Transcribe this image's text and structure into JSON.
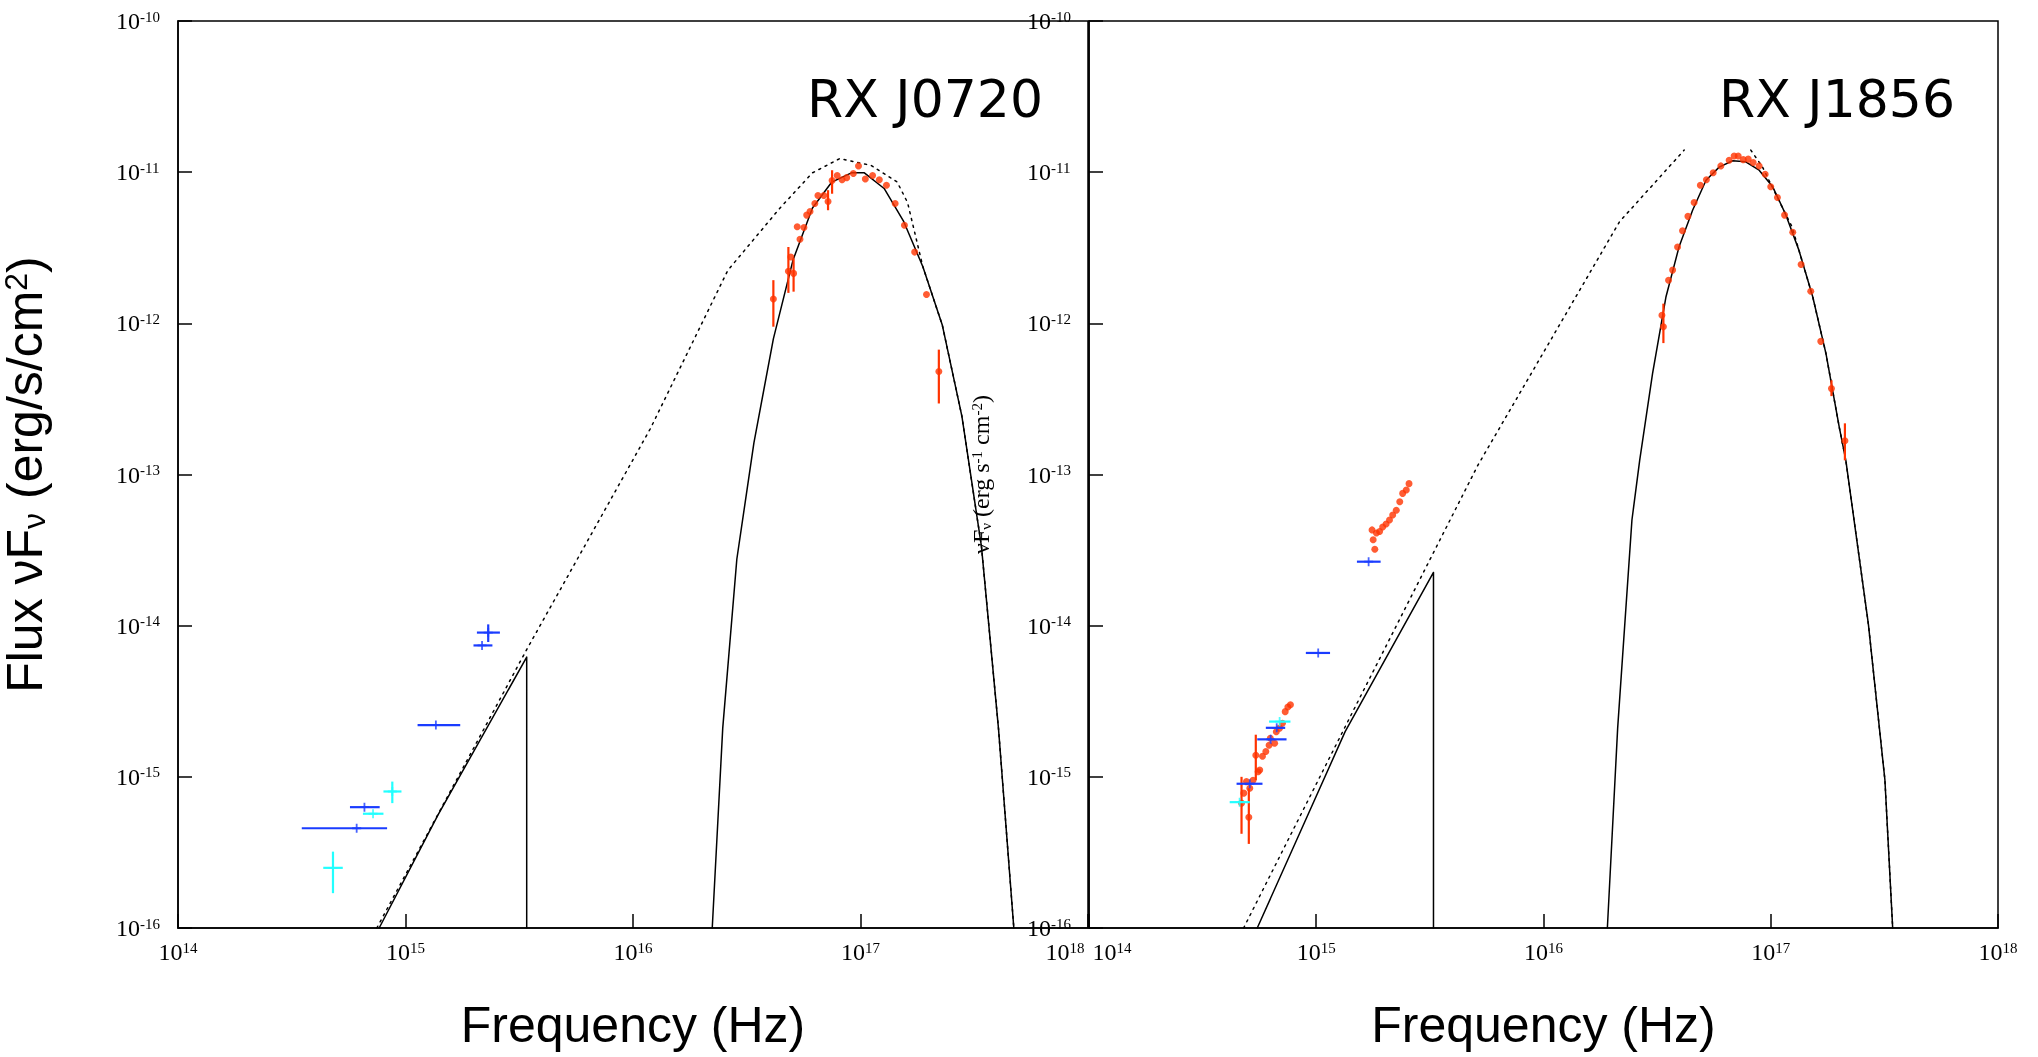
{
  "chart_data": [
    {
      "type": "scatter",
      "title": "RX J0720",
      "xlabel": "Frequency (Hz)",
      "ylabel": "Flux νF$_{ν}$ (erg/s/cm$^{2}$)",
      "log": "xy",
      "xlim": [
        100000000000000.0,
        1e+18
      ],
      "ylim": [
        1e-16,
        1e-10
      ],
      "xticks": [
        {
          "value": 100000000000000.0,
          "label": "10$^{14}$"
        },
        {
          "value": 1000000000000000.0,
          "label": "10$^{15}$"
        },
        {
          "value": 1e+16,
          "label": "10$^{16}$"
        },
        {
          "value": 1e+17,
          "label": "10$^{17}$"
        },
        {
          "value": 1e+18,
          "label": "10$^{18}$"
        }
      ],
      "yticks": [
        {
          "value": 1e-16,
          "label": "10$^{-16}$"
        },
        {
          "value": 1e-15,
          "label": "10$^{-15}$"
        },
        {
          "value": 1e-14,
          "label": "10$^{-14}$"
        },
        {
          "value": 1e-13,
          "label": "10$^{-13}$"
        },
        {
          "value": 1e-12,
          "label": "10$^{-12}$"
        },
        {
          "value": 1e-11,
          "label": "10$^{-11}$"
        },
        {
          "value": 1e-10,
          "label": "10$^{-10}$"
        }
      ],
      "series": [
        {
          "type": "line",
          "color": "#000000",
          "line_style": "dotted",
          "x": [
            748000000000000.0,
            3400000000000000.0,
            1.19e+16,
            2.61e+16,
            4.43e+16,
            6.15e+16,
            8.11e+16,
            1.11e+17,
            1.45e+17,
            1.61e+17,
            1.88e+17,
            2.29e+17,
            2.79e+17,
            3.4e+17,
            4.04e+17,
            4.72e+17
          ],
          "values": [
            1e-16,
            6.9e-15,
            2e-13,
            2.24e-12,
            5.8e-12,
            9.9e-12,
            1.23e-11,
            1.11e-11,
            8.6e-12,
            6.3e-12,
            2.37e-12,
            9.7e-13,
            2.43e-13,
            3.36e-14,
            2.1e-15,
            1e-16
          ]
        },
        {
          "type": "line",
          "color": "#000000",
          "line_style": "solid",
          "x": [
            766000000000000.0,
            1390000000000000.0,
            3410000000000000.0,
            3410000000000000.0,
            1e+16,
            2.23e+16,
            2.48e+16,
            2.86e+16,
            3.4e+16,
            4.14e+16,
            5.05e+16,
            6.15e+16,
            7.48e+16,
            9.12e+16,
            1.04e+17,
            1.27e+17,
            1.55e+17,
            1.88e+17,
            2.29e+17,
            2.79e+17,
            3.4e+17,
            4.04e+17,
            4.72e+17
          ],
          "values": [
            1e-16,
            5.6e-16,
            6.2e-15,
            1e-16,
            null,
            1e-16,
            2.1e-15,
            2.75e-14,
            1.62e-13,
            7.9e-13,
            2.62e-12,
            5.8e-12,
            8.6e-12,
            9.9e-12,
            9.9e-12,
            7.8e-12,
            4.7e-12,
            2.37e-12,
            9.7e-13,
            2.43e-13,
            3.36e-14,
            2.1e-15,
            1e-16
          ]
        },
        {
          "type": "scatter",
          "color": "#1a3cff",
          "marker": "cross",
          "x": [
            610000000000000.0,
            660000000000000.0,
            1360000000000000.0,
            2170000000000000.0,
            2310000000000000.0
          ],
          "values": [
            4.57e-16,
            6.3e-16,
            2.2e-15,
            7.4e-15,
            9e-15
          ],
          "xerrors": [
            [
              350000000000000.0,
              830000000000000.0
            ],
            [
              570000000000000.0,
              770000000000000.0
            ],
            [
              1130000000000000.0,
              1740000000000000.0
            ],
            [
              1990000000000000.0,
              2410000000000000.0
            ],
            [
              2060000000000000.0,
              2600000000000000.0
            ]
          ],
          "errors": [
            null,
            null,
            null,
            null,
            [
              7.8e-15,
              1.02e-14
            ]
          ]
        },
        {
          "type": "scatter",
          "color": "#22ffff",
          "marker": "cross",
          "x": [
            480000000000000.0,
            720000000000000.0,
            875000000000000.0
          ],
          "values": [
            2.5e-16,
            5.7e-16,
            8e-16
          ],
          "xerrors": [
            [
              435000000000000.0,
              530000000000000.0
            ],
            [
              650000000000000.0,
              800000000000000.0
            ],
            [
              800000000000000.0,
              960000000000000.0
            ]
          ],
          "errors": [
            [
              1.7e-16,
              3.2e-16
            ],
            null,
            [
              6.7e-16,
              9.3e-16
            ]
          ]
        },
        {
          "type": "scatter",
          "color": "#ff3300",
          "marker": "circle",
          "x": [
            4.14e+16,
            4.82e+16,
            4.94e+16,
            5.08e+16,
            5.27e+16,
            5.42e+16,
            5.64e+16,
            5.8e+16,
            6e+16,
            6.3e+16,
            6.5e+16,
            6.9e+16,
            7.2e+16,
            7.5e+16,
            7.9e+16,
            8.3e+16,
            8.7e+16,
            9.3e+16,
            9.8e+16,
            1.05e+17,
            1.13e+17,
            1.21e+17,
            1.3e+17,
            1.42e+17,
            1.56e+17,
            1.73e+17,
            1.95e+17,
            2.21e+17
          ],
          "values": [
            1.45e-12,
            2.21e-12,
            2.75e-12,
            2.14e-12,
            4.35e-12,
            3.6e-12,
            4.3e-12,
            5.2e-12,
            5.5e-12,
            6.2e-12,
            7e-12,
            7e-12,
            6.4e-12,
            8.8e-12,
            9.5e-12,
            8.9e-12,
            9.2e-12,
            9.8e-12,
            1.1e-11,
            9e-12,
            9.5e-12,
            8.9e-12,
            8.2e-12,
            6.2e-12,
            4.45e-12,
            2.96e-12,
            1.55e-12,
            4.8e-13
          ],
          "errors": [
            [
              9.5e-13,
              1.93e-12
            ],
            [
              1.59e-12,
              3.2e-12
            ],
            null,
            [
              1.62e-12,
              2.69e-12
            ],
            null,
            null,
            null,
            null,
            null,
            null,
            null,
            null,
            [
              5.6e-12,
              7.6e-12
            ],
            [
              7.2e-12,
              1.03e-11
            ],
            null,
            null,
            null,
            null,
            null,
            null,
            null,
            null,
            null,
            null,
            null,
            null,
            null,
            [
              2.95e-13,
              6.7e-13
            ]
          ]
        }
      ]
    },
    {
      "type": "scatter",
      "title": "RX J1856",
      "xlabel": "Frequency (Hz)",
      "ylabel": "νF$_{ν}$ (erg s$^{-1}$ cm$^{-2}$)",
      "log": "xy",
      "xlim": [
        100000000000000.0,
        1e+18
      ],
      "ylim": [
        1e-16,
        1e-10
      ],
      "xticks": [
        {
          "value": 100000000000000.0,
          "label": "10$^{14}$"
        },
        {
          "value": 1000000000000000.0,
          "label": "10$^{15}$"
        },
        {
          "value": 1e+16,
          "label": "10$^{16}$"
        },
        {
          "value": 1e+17,
          "label": "10$^{17}$"
        },
        {
          "value": 1e+18,
          "label": "10$^{18}$"
        }
      ],
      "yticks": [
        {
          "value": 1e-16,
          "label": "10$^{-16}$"
        },
        {
          "value": 1e-15,
          "label": "10$^{-15}$"
        },
        {
          "value": 1e-14,
          "label": "10$^{-14}$"
        },
        {
          "value": 1e-13,
          "label": "10$^{-13}$"
        },
        {
          "value": 1e-12,
          "label": "10$^{-12}$"
        },
        {
          "value": 1e-11,
          "label": "10$^{-11}$"
        },
        {
          "value": 1e-10,
          "label": "10$^{-10}$"
        }
      ],
      "series": [
        {
          "type": "line",
          "color": "#000000",
          "line_style": "dotted",
          "x": [
            479000000000000.0,
            1580000000000000.0,
            5140000000000000.0,
            2.16e+16,
            4.16e+16,
            6e+16,
            8.17e+16,
            9.2e+16,
            1.05e+17,
            1.24e+17,
            1.53e+17,
            1.75e+17,
            2e+17,
            2.14e+17,
            2.69e+17,
            3.18e+17,
            3.44e+17
          ],
          "values": [
            1e-16,
            3.5e-15,
            1.15e-13,
            4.7e-12,
            1.4e-11,
            null,
            1.4e-11,
            1.08e-11,
            7.2e-12,
            4.35e-12,
            1.5e-12,
            6.3e-13,
            2.07e-13,
            1.24e-13,
            1.02e-14,
            9.5e-16,
            1e-16
          ]
        },
        {
          "type": "line",
          "color": "#000000",
          "line_style": "solid",
          "x": [
            550000000000000.0,
            1340000000000000.0,
            3280000000000000.0,
            3280000000000000.0,
            1e+16,
            1.91e+16,
            2.12e+16,
            2.45e+16,
            2.65e+16,
            3.02e+16,
            3.46e+16,
            3.95e+16,
            4.53e+16,
            5.19e+16,
            5.93e+16,
            6.79e+16,
            7.76e+16,
            8.89e+16,
            1.02e+17,
            1.16e+17,
            1.33e+17,
            1.53e+17,
            1.75e+17,
            2e+17,
            2.14e+17,
            2.69e+17,
            3.18e+17,
            3.44e+17
          ],
          "values": [
            1e-16,
            1.99e-15,
            2.25e-14,
            1e-16,
            null,
            1e-16,
            2.1e-15,
            5e-14,
            1.24e-13,
            4.66e-13,
            1.5e-12,
            3.21e-12,
            5.6e-12,
            8.85e-12,
            1.08e-11,
            1.19e-11,
            1.17e-11,
            1.03e-11,
            8e-12,
            5.3e-12,
            3.05e-12,
            1.5e-12,
            6.3e-13,
            2.07e-13,
            1.24e-13,
            1.02e-14,
            9.5e-16,
            1e-16
          ]
        },
        {
          "type": "scatter",
          "color": "#1a3cff",
          "marker": "cross",
          "x": [
            510000000000000.0,
            630000000000000.0,
            670000000000000.0,
            1020000000000000.0,
            1700000000000000.0
          ],
          "values": [
            9e-16,
            1.77e-15,
            2.11e-15,
            6.6e-15,
            2.65e-14
          ],
          "xerrors": [
            [
              446000000000000.0,
              580000000000000.0
            ],
            [
              550000000000000.0,
              740000000000000.0
            ],
            [
              600000000000000.0,
              730000000000000.0
            ],
            [
              900000000000000.0,
              1150000000000000.0
            ],
            [
              1510000000000000.0,
              1920000000000000.0
            ]
          ]
        },
        {
          "type": "scatter",
          "color": "#22ffff",
          "marker": "cross",
          "x": [
            460000000000000.0,
            690000000000000.0
          ],
          "values": [
            6.8e-16,
            2.32e-15
          ],
          "xerrors": [
            [
              416000000000000.0,
              510000000000000.0
            ],
            [
              620000000000000.0,
              770000000000000.0
            ]
          ]
        },
        {
          "type": "scatter",
          "color": "#ff3300",
          "marker": "circle",
          "x": [
            469000000000000.0,
            480000000000000.0,
            493000000000000.0,
            505000000000000.0,
            510000000000000.0,
            527000000000000.0,
            542000000000000.0,
            555000000000000.0,
            564000000000000.0,
            580000000000000.0,
            600000000000000.0,
            620000000000000.0,
            628000000000000.0,
            656000000000000.0,
            667000000000000.0,
            690000000000000.0,
            710000000000000.0,
            730000000000000.0,
            750000000000000.0,
            770000000000000.0,
            1810000000000000.0,
            1780000000000000.0,
            1760000000000000.0,
            1840000000000000.0,
            1900000000000000.0,
            1960000000000000.0,
            2030000000000000.0,
            2100000000000000.0,
            2170000000000000.0,
            2250000000000000.0,
            2330000000000000.0,
            2400000000000000.0,
            2490000000000000.0,
            2560000000000000.0,
            3.32e+16,
            3.37e+16,
            3.55e+16,
            3.7e+16,
            3.89e+16,
            4.09e+16,
            4.32e+16,
            4.6e+16,
            4.9e+16,
            5.21e+16,
            5.58e+16,
            6.03e+16,
            6.56e+16,
            6.9e+16,
            7.19e+16,
            7.57e+16,
            7.96e+16,
            8.37e+16,
            8.89e+16,
            9.45e+16,
            1e+17,
            1.07e+17,
            1.15e+17,
            1.25e+17,
            1.36e+17,
            1.5e+17,
            1.66e+17,
            1.85e+17,
            2.12e+17
          ],
          "values": [
            6.7e-16,
            7.8e-16,
            9.3e-16,
            5.4e-16,
            8.4e-16,
            9.5e-16,
            1.39e-15,
            1.08e-15,
            1.11e-15,
            1.37e-15,
            1.47e-15,
            1.62e-15,
            1.8e-15,
            1.67e-15,
            1.99e-15,
            2.1e-15,
            2.26e-15,
            2.7e-15,
            2.9e-15,
            3e-15,
            3.2e-14,
            3.7e-14,
            4.3e-14,
            4.1e-14,
            4.2e-14,
            4.5e-14,
            4.7e-14,
            5e-14,
            5.4e-14,
            5.8e-14,
            6.6e-14,
            7.5e-14,
            7.9e-14,
            8.7e-14,
            1.13e-12,
            9.5e-13,
            1.93e-12,
            2.25e-12,
            3.2e-12,
            4.1e-12,
            5.1e-12,
            6.3e-12,
            8.2e-12,
            8.9e-12,
            9.9e-12,
            1.1e-11,
            1.2e-11,
            1.28e-11,
            1.28e-11,
            1.21e-11,
            1.22e-11,
            1.16e-11,
            1.1e-11,
            9.7e-12,
            8e-12,
            6.8e-12,
            5.2e-12,
            4e-12,
            2.45e-12,
            1.63e-12,
            7.6e-13,
            3.7e-13,
            1.67e-13
          ],
          "errors": [
            [
              4.2e-16,
              1e-15
            ],
            null,
            null,
            [
              3.6e-16,
              8.4e-16
            ],
            null,
            null,
            [
              9.5e-16,
              1.9e-15
            ],
            null,
            null,
            null,
            null,
            null,
            null,
            null,
            null,
            null,
            null,
            null,
            null,
            null,
            null,
            null,
            null,
            null,
            null,
            null,
            null,
            null,
            null,
            null,
            null,
            null,
            null,
            null,
            null,
            [
              7.4e-13,
              1.35e-12
            ],
            null,
            null,
            null,
            null,
            null,
            null,
            null,
            null,
            null,
            null,
            null,
            null,
            null,
            null,
            null,
            null,
            null,
            null,
            null,
            null,
            null,
            null,
            null,
            null,
            null,
            [
              3.3e-13,
              4.2e-13
            ],
            [
              1.24e-13,
              2.18e-13
            ]
          ]
        }
      ]
    }
  ]
}
